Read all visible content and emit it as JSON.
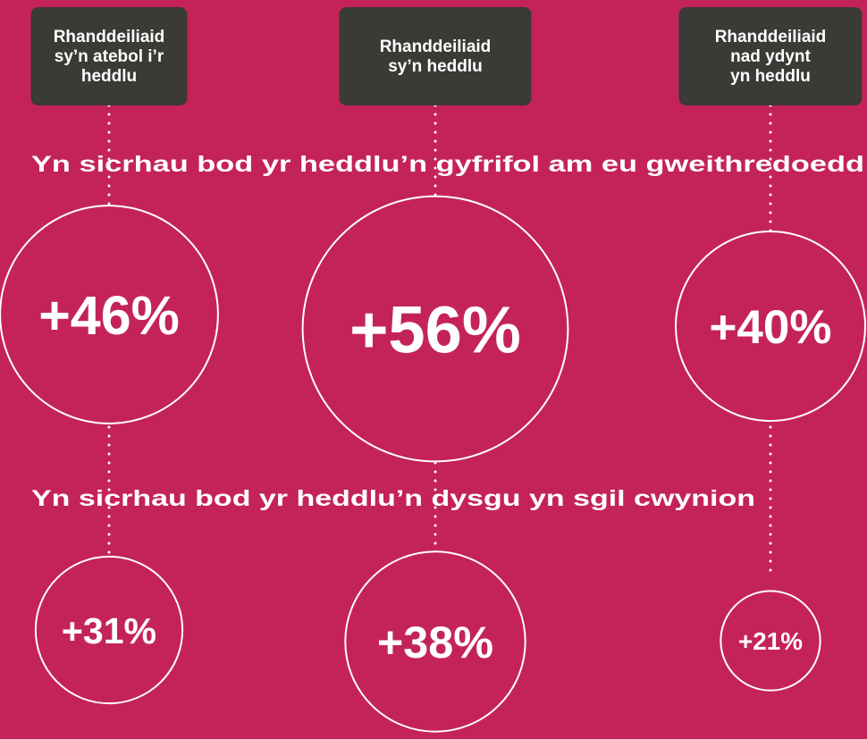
{
  "chart_data": {
    "type": "bubble",
    "categories": [
      "Rhanddeiliaid\nsy’n atebol i’r\nheddlu",
      "Rhanddeiliaid\nsy’n heddlu",
      "Rhanddeiliaid\nnad ydynt\nyn heddlu"
    ],
    "series": [
      {
        "name": "Yn sicrhau bod yr heddlu’n gyfrifol am eu gweithredoedd",
        "color": "#c4235a",
        "values": [
          46,
          56,
          40
        ],
        "value_labels": [
          "+46%",
          "+56%",
          "+40%"
        ]
      },
      {
        "name": "Yn sicrhau bod yr heddlu’n dysgu yn sgil cwynion",
        "color": "#c4235a",
        "values": [
          31,
          38,
          21
        ],
        "value_labels": [
          "+31%",
          "+38%",
          "+21%"
        ]
      }
    ]
  }
}
